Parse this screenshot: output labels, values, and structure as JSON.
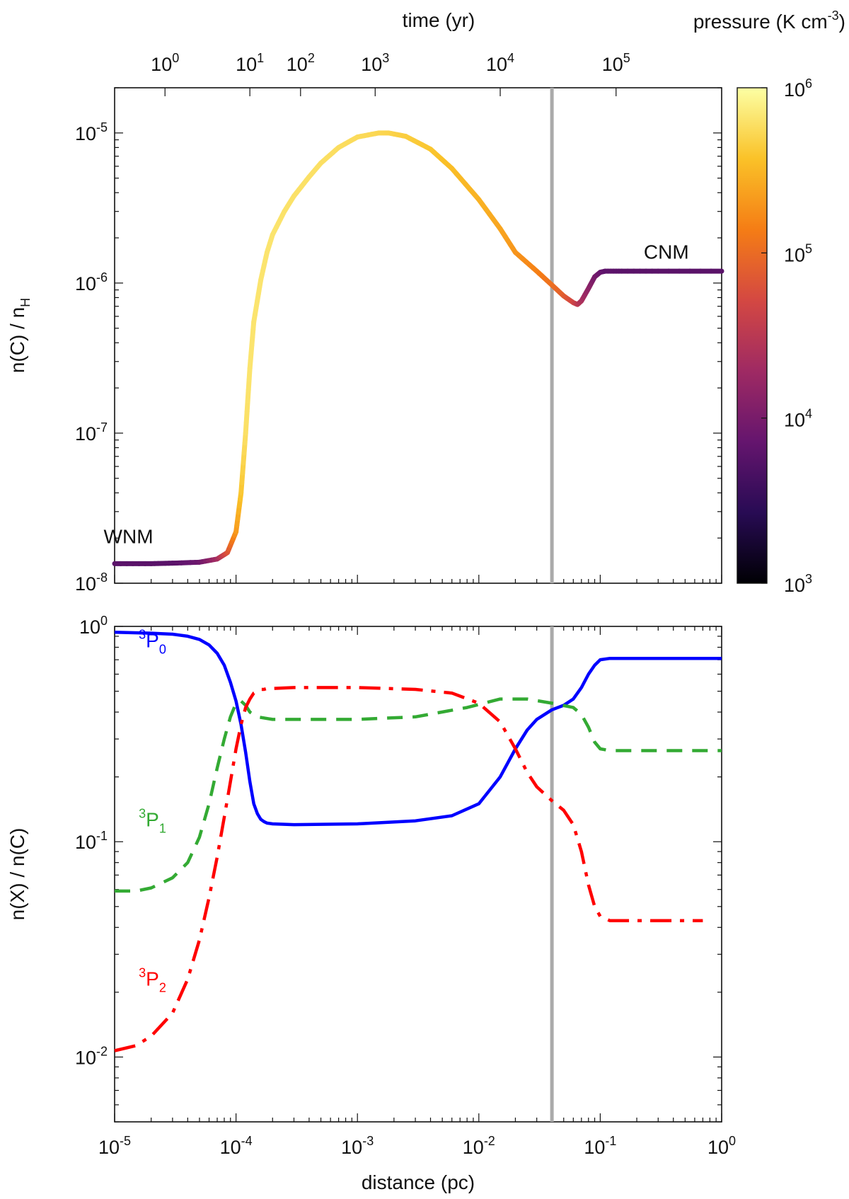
{
  "chart_data": [
    {
      "type": "line",
      "panel": "top",
      "ylabel": "n(C) / n",
      "ylabel_sub": "H",
      "xscale": "log",
      "yscale": "log",
      "xlim": [
        1e-05,
        1
      ],
      "ylim": [
        1e-08,
        2e-05
      ],
      "yticks": [
        {
          "value": 1e-08,
          "base": "10",
          "exp": "-8"
        },
        {
          "value": 1e-07,
          "base": "10",
          "exp": "-7"
        },
        {
          "value": 1e-06,
          "base": "10",
          "exp": "-6"
        },
        {
          "value": 1e-05,
          "base": "10",
          "exp": "-5"
        }
      ],
      "top_axis": {
        "label": "time (yr)",
        "ticks": [
          {
            "x": 2.6e-05,
            "base": "10",
            "exp": "0"
          },
          {
            "x": 0.00013,
            "base": "10",
            "exp": "1"
          },
          {
            "x": 0.00034,
            "base": "10",
            "exp": "2"
          },
          {
            "x": 0.0014,
            "base": "10",
            "exp": "3"
          },
          {
            "x": 0.015,
            "base": "10",
            "exp": "4"
          },
          {
            "x": 0.135,
            "base": "10",
            "exp": "5"
          }
        ]
      },
      "colorbar": {
        "label": "pressure (K cm",
        "label_exp": "-3",
        "label_end": ")",
        "range": [
          1000,
          1000000
        ],
        "ticks": [
          {
            "value": 1000,
            "base": "10",
            "exp": "3"
          },
          {
            "value": 10000,
            "base": "10",
            "exp": "4"
          },
          {
            "value": 100000,
            "base": "10",
            "exp": "5"
          },
          {
            "value": 1000000,
            "base": "10",
            "exp": "6"
          }
        ],
        "colors": [
          "#000004",
          "#280b54",
          "#65156e",
          "#9f2a63",
          "#d44842",
          "#f57d15",
          "#fac228",
          "#fcffa4"
        ]
      },
      "series": [
        {
          "x": [
            1e-05,
            2e-05,
            3e-05,
            5e-05,
            7e-05,
            8.5e-05,
            0.0001,
            0.00011,
            0.00012,
            0.00013,
            0.00014,
            0.00016,
            0.00018,
            0.0002,
            0.00025,
            0.0003,
            0.0004,
            0.0005,
            0.0007,
            0.001,
            0.0015,
            0.0018,
            0.0025,
            0.004,
            0.006,
            0.01,
            0.015,
            0.02,
            0.03,
            0.04,
            0.05,
            0.06,
            0.065,
            0.07,
            0.08,
            0.09,
            0.1,
            0.11,
            0.15,
            0.3,
            1.0
          ],
          "y": [
            1.35e-08,
            1.35e-08,
            1.36e-08,
            1.38e-08,
            1.45e-08,
            1.6e-08,
            2.2e-08,
            4e-08,
            1e-07,
            2.7e-07,
            5.5e-07,
            1.05e-06,
            1.6e-06,
            2.1e-06,
            3e-06,
            3.8e-06,
            5.1e-06,
            6.3e-06,
            8e-06,
            9.4e-06,
            1e-05,
            1e-05,
            9.5e-06,
            7.8e-06,
            5.8e-06,
            3.6e-06,
            2.3e-06,
            1.6e-06,
            1.2e-06,
            9.7e-07,
            8.2e-07,
            7.4e-07,
            7.2e-07,
            7.6e-07,
            9.2e-07,
            1.1e-06,
            1.18e-06,
            1.2e-06,
            1.2e-06,
            1.2e-06,
            1.2e-06
          ],
          "pressure": [
            6000,
            6000,
            6000,
            8000,
            20000,
            60000,
            200000,
            400000,
            600000,
            650000,
            650000,
            650000,
            650000,
            650000,
            630000,
            620000,
            610000,
            600000,
            580000,
            560000,
            520000,
            500000,
            450000,
            400000,
            350000,
            300000,
            250000,
            200000,
            150000,
            110000,
            80000,
            50000,
            35000,
            25000,
            15000,
            10000,
            8000,
            6500,
            6000,
            6000,
            6000
          ]
        }
      ],
      "vline_x": 0.04,
      "annotations": [
        {
          "text": "WNM",
          "x": 1.3e-05,
          "y": 1.85e-08
        },
        {
          "text": "CNM",
          "x": 0.35,
          "y": 1.45e-06
        }
      ]
    },
    {
      "type": "line",
      "panel": "bottom",
      "xlabel": "distance (pc)",
      "ylabel": "n(X) / n(C)",
      "xscale": "log",
      "yscale": "log",
      "xlim": [
        1e-05,
        1
      ],
      "ylim": [
        0.005,
        1
      ],
      "xticks": [
        {
          "value": 1e-05,
          "base": "10",
          "exp": "-5"
        },
        {
          "value": 0.0001,
          "base": "10",
          "exp": "-4"
        },
        {
          "value": 0.001,
          "base": "10",
          "exp": "-3"
        },
        {
          "value": 0.01,
          "base": "10",
          "exp": "-2"
        },
        {
          "value": 0.1,
          "base": "10",
          "exp": "-1"
        },
        {
          "value": 1,
          "base": "10",
          "exp": "0"
        }
      ],
      "yticks": [
        {
          "value": 0.01,
          "base": "10",
          "exp": "-2"
        },
        {
          "value": 0.1,
          "base": "10",
          "exp": "-1"
        },
        {
          "value": 1,
          "base": "10",
          "exp": "0"
        }
      ],
      "vline_x": 0.04,
      "series": [
        {
          "name_sup": "3",
          "name_main": "P",
          "name_sub": "0",
          "color": "#0000ff",
          "dash": "solid",
          "x": [
            1e-05,
            2e-05,
            3e-05,
            4e-05,
            5e-05,
            6e-05,
            7e-05,
            8e-05,
            9e-05,
            0.0001,
            0.00011,
            0.00012,
            0.00013,
            0.00014,
            0.00015,
            0.00016,
            0.00017,
            0.00018,
            0.0002,
            0.0003,
            0.001,
            0.003,
            0.006,
            0.01,
            0.015,
            0.02,
            0.025,
            0.03,
            0.04,
            0.05,
            0.06,
            0.07,
            0.08,
            0.09,
            0.1,
            0.12,
            0.3,
            1.0
          ],
          "y": [
            0.94,
            0.93,
            0.92,
            0.9,
            0.87,
            0.82,
            0.75,
            0.66,
            0.55,
            0.45,
            0.35,
            0.26,
            0.19,
            0.15,
            0.135,
            0.127,
            0.124,
            0.122,
            0.121,
            0.12,
            0.121,
            0.125,
            0.132,
            0.15,
            0.2,
            0.27,
            0.33,
            0.37,
            0.41,
            0.43,
            0.46,
            0.52,
            0.6,
            0.66,
            0.7,
            0.71,
            0.71,
            0.71
          ]
        },
        {
          "name_sup": "3",
          "name_main": "P",
          "name_sub": "1",
          "color": "#33aa33",
          "dash": "dashed",
          "x": [
            1e-05,
            1.5e-05,
            2e-05,
            3e-05,
            4e-05,
            5e-05,
            6e-05,
            7e-05,
            8e-05,
            9e-05,
            0.0001,
            0.00011,
            0.00012,
            0.00013,
            0.00015,
            0.0002,
            0.0003,
            0.001,
            0.003,
            0.008,
            0.015,
            0.025,
            0.04,
            0.06,
            0.07,
            0.08,
            0.09,
            0.1,
            0.12,
            0.3,
            1.0
          ],
          "y": [
            0.059,
            0.059,
            0.061,
            0.068,
            0.08,
            0.105,
            0.15,
            0.22,
            0.3,
            0.38,
            0.44,
            0.45,
            0.43,
            0.4,
            0.38,
            0.37,
            0.37,
            0.37,
            0.38,
            0.42,
            0.46,
            0.46,
            0.44,
            0.42,
            0.39,
            0.34,
            0.29,
            0.27,
            0.265,
            0.265,
            0.265
          ]
        },
        {
          "name_sup": "3",
          "name_main": "P",
          "name_sub": "2",
          "color": "#ff0000",
          "dash": "dashdot",
          "x": [
            1e-05,
            1.5e-05,
            2e-05,
            3e-05,
            4e-05,
            5e-05,
            6e-05,
            7e-05,
            8e-05,
            9e-05,
            0.0001,
            0.00011,
            0.00012,
            0.00013,
            0.00014,
            0.00015,
            0.00016,
            0.00017,
            0.00018,
            0.0002,
            0.0003,
            0.001,
            0.003,
            0.006,
            0.01,
            0.015,
            0.02,
            0.025,
            0.03,
            0.04,
            0.05,
            0.06,
            0.07,
            0.08,
            0.09,
            0.1,
            0.12,
            0.2,
            0.7
          ],
          "y": [
            0.0107,
            0.0113,
            0.0125,
            0.016,
            0.023,
            0.035,
            0.055,
            0.085,
            0.13,
            0.19,
            0.27,
            0.35,
            0.42,
            0.46,
            0.49,
            0.5,
            0.51,
            0.51,
            0.515,
            0.515,
            0.52,
            0.52,
            0.51,
            0.49,
            0.44,
            0.36,
            0.27,
            0.21,
            0.18,
            0.155,
            0.14,
            0.12,
            0.09,
            0.063,
            0.05,
            0.045,
            0.043,
            0.043,
            0.043
          ]
        }
      ]
    }
  ]
}
